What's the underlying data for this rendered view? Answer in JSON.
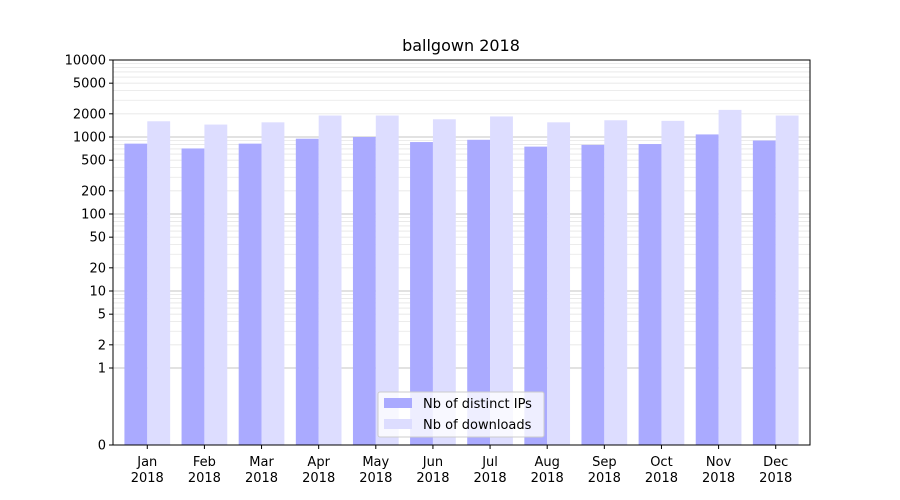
{
  "chart_data": {
    "type": "bar",
    "title": "ballgown 2018",
    "xlabel": "",
    "ylabel": "",
    "yscale": "symlog",
    "ylim": [
      0,
      10000
    ],
    "yticks": [
      0,
      1,
      2,
      5,
      10,
      20,
      50,
      100,
      200,
      500,
      1000,
      2000,
      5000,
      10000
    ],
    "ytick_labels": [
      "0",
      "1",
      "2",
      "5",
      "10",
      "20",
      "50",
      "100",
      "200",
      "500",
      "1000",
      "2000",
      "5000",
      "10000"
    ],
    "categories": [
      [
        "Jan",
        "2018"
      ],
      [
        "Feb",
        "2018"
      ],
      [
        "Mar",
        "2018"
      ],
      [
        "Apr",
        "2018"
      ],
      [
        "May",
        "2018"
      ],
      [
        "Jun",
        "2018"
      ],
      [
        "Jul",
        "2018"
      ],
      [
        "Aug",
        "2018"
      ],
      [
        "Sep",
        "2018"
      ],
      [
        "Oct",
        "2018"
      ],
      [
        "Nov",
        "2018"
      ],
      [
        "Dec",
        "2018"
      ]
    ],
    "series": [
      {
        "name": "Nb of distinct IPs",
        "color": "#aaaaff",
        "values": [
          820,
          710,
          820,
          950,
          1000,
          860,
          920,
          750,
          790,
          810,
          1080,
          900
        ]
      },
      {
        "name": "Nb of downloads",
        "color": "#ddddff",
        "values": [
          1600,
          1450,
          1550,
          1900,
          1900,
          1700,
          1850,
          1550,
          1650,
          1620,
          2250,
          1900
        ]
      }
    ],
    "grid": true,
    "legend_position": "bottom-center"
  }
}
